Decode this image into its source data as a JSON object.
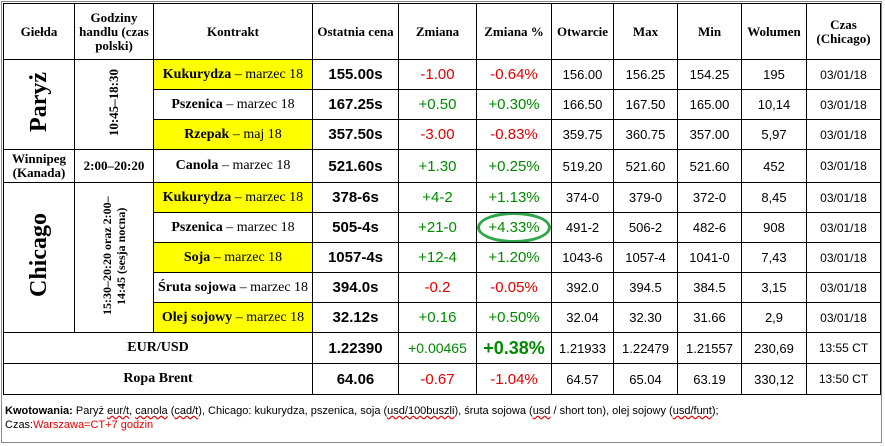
{
  "headers": {
    "exchange": "Giełda",
    "hours": "Godziny handlu (czas polski)",
    "contract": "Kontrakt",
    "last": "Ostatnia cena",
    "change": "Zmiana",
    "change_pct": "Zmiana %",
    "open": "Otwarcie",
    "max": "Max",
    "min": "Min",
    "volume": "Wolumen",
    "time": "Czas (Chicago)"
  },
  "groups": {
    "paris": {
      "name": "Paryż",
      "hours": "10:45–18:30"
    },
    "winnipeg": {
      "name": "Winnipeg (Kanada)",
      "hours": "2:00–20:20"
    },
    "chicago": {
      "name": "Chicago",
      "hours": "15:30–20:20 oraz 2:00–14:45 (sesja nocna)"
    }
  },
  "rows": [
    {
      "commodity": "Kukurydza",
      "expiry": " – marzec 18",
      "last": "155.00s",
      "change": "-1.00",
      "change_pct": "-0.64%",
      "open": "156.00",
      "max": "156.25",
      "min": "154.25",
      "volume": "195",
      "time": "03/01/18"
    },
    {
      "commodity": "Pszenica",
      "expiry": " – marzec 18",
      "last": "167.25s",
      "change": "+0.50",
      "change_pct": "+0.30%",
      "open": "166.50",
      "max": "167.50",
      "min": "165.00",
      "volume": "10,14",
      "time": "03/01/18"
    },
    {
      "commodity": "Rzepak",
      "expiry": " – maj 18",
      "last": "357.50s",
      "change": "-3.00",
      "change_pct": "-0.83%",
      "open": "359.75",
      "max": "360.75",
      "min": "357.00",
      "volume": "5,97",
      "time": "03/01/18"
    },
    {
      "commodity": "Canola",
      "expiry": " – marzec 18",
      "last": "521.60s",
      "change": "+1.30",
      "change_pct": "+0.25%",
      "open": "519.20",
      "max": "521.60",
      "min": "521.60",
      "volume": "452",
      "time": "03/01/18"
    },
    {
      "commodity": "Kukurydza",
      "expiry": " – marzec 18",
      "last": "378-6s",
      "change": "+4-2",
      "change_pct": "+1.13%",
      "open": "374-0",
      "max": "379-0",
      "min": "372-0",
      "volume": "8,45",
      "time": "03/01/18"
    },
    {
      "commodity": "Pszenica",
      "expiry": " – marzec 18",
      "last": "505-4s",
      "change": "+21-0",
      "change_pct": "+4.33%",
      "open": "491-2",
      "max": "506-2",
      "min": "482-6",
      "volume": "908",
      "time": "03/01/18"
    },
    {
      "commodity": "Soja",
      "expiry": " – marzec 18",
      "last": "1057-4s",
      "change": "+12-4",
      "change_pct": "+1.20%",
      "open": "1043-6",
      "max": "1057-4",
      "min": "1041-0",
      "volume": "7,43",
      "time": "03/01/18"
    },
    {
      "commodity": "Śruta sojowa",
      "expiry": " – marzec 18",
      "last": "394.0s",
      "change": "-0.2",
      "change_pct": "-0.05%",
      "open": "392.0",
      "max": "394.5",
      "min": "384.5",
      "volume": "3,15",
      "time": "03/01/18"
    },
    {
      "commodity": "Olej sojowy",
      "expiry": " – marzec 18",
      "last": "32.12s",
      "change": "+0.16",
      "change_pct": "+0.50%",
      "open": "32.04",
      "max": "32.30",
      "min": "31.66",
      "volume": "2,9",
      "time": "03/01/18"
    },
    {
      "commodity": "EUR/USD",
      "expiry": "",
      "last": "1.22390",
      "change": "+0.00465",
      "change_pct": "+0.38%",
      "open": "1.21933",
      "max": "1.22479",
      "min": "1.21557",
      "volume": "230,69",
      "time": "13:55 CT"
    },
    {
      "commodity": "Ropa Brent",
      "expiry": "",
      "last": "64.06",
      "change": "-0.67",
      "change_pct": "-1.04%",
      "open": "64.57",
      "max": "65.04",
      "min": "63.19",
      "volume": "330,12",
      "time": "13:50 CT"
    }
  ],
  "note": {
    "label": "Kwotowania:",
    "text1": " Paryż ",
    "u1": "eur/t",
    "text2": ", ",
    "u2": "canola",
    "text3": " (",
    "u3": "cad/t",
    "text4": "), Chicago: kukurydza, pszenica, soja (",
    "u4": "usd/100buszli",
    "text5": "), śruta sojowa (",
    "u5": "usd",
    "text6": " / short ton), olej sojowy (",
    "u6": "usd/funt",
    "text7": ");",
    "time_label": "Czas:",
    "time_value": "Warszawa=CT+7 godzin"
  },
  "colors": {
    "highlight": "#ffff00",
    "negative": "#e00000",
    "positive": "#008a00",
    "circle": "#2fa64a"
  }
}
